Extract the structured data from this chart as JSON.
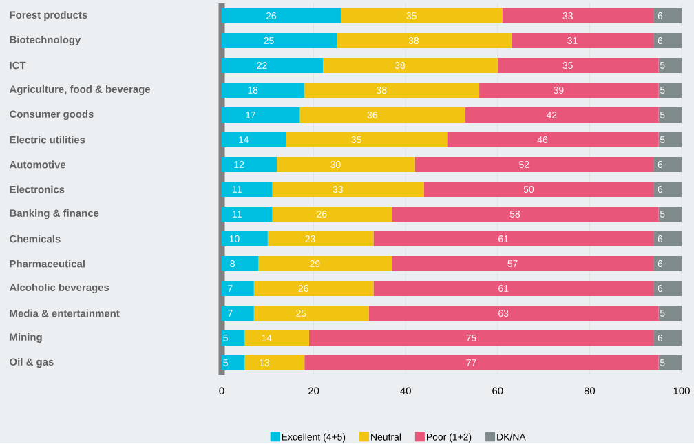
{
  "chart_data": {
    "type": "bar",
    "orientation": "horizontal",
    "stacked": true,
    "categories": [
      "Forest products",
      "Biotechnology",
      "ICT",
      "Agriculture, food & beverage",
      "Consumer goods",
      "Electric utilities",
      "Automotive",
      "Electronics",
      "Banking & finance",
      "Chemicals",
      "Pharmaceutical",
      "Alcoholic beverages",
      "Media & entertainment",
      "Mining",
      "Oil & gas"
    ],
    "series": [
      {
        "name": "Excellent (4+5)",
        "color": "#00c0e2",
        "values": [
          26,
          25,
          22,
          18,
          17,
          14,
          12,
          11,
          11,
          10,
          8,
          7,
          7,
          5,
          5
        ]
      },
      {
        "name": "Neutral",
        "color": "#f2c412",
        "values": [
          35,
          38,
          38,
          38,
          36,
          35,
          30,
          33,
          26,
          23,
          29,
          26,
          25,
          14,
          13
        ]
      },
      {
        "name": "Poor (1+2)",
        "color": "#e8567a",
        "values": [
          33,
          31,
          35,
          39,
          42,
          46,
          52,
          50,
          58,
          61,
          57,
          61,
          63,
          75,
          77
        ]
      },
      {
        "name": "DK/NA",
        "color": "#7f8a8a",
        "values": [
          6,
          6,
          5,
          5,
          5,
          5,
          6,
          6,
          5,
          6,
          6,
          6,
          5,
          6,
          5
        ]
      }
    ],
    "xlim": [
      0,
      100
    ],
    "xticks": [
      0,
      20,
      40,
      60,
      80,
      100
    ],
    "grid": "x",
    "legend": "bottom",
    "data_labels": true
  }
}
